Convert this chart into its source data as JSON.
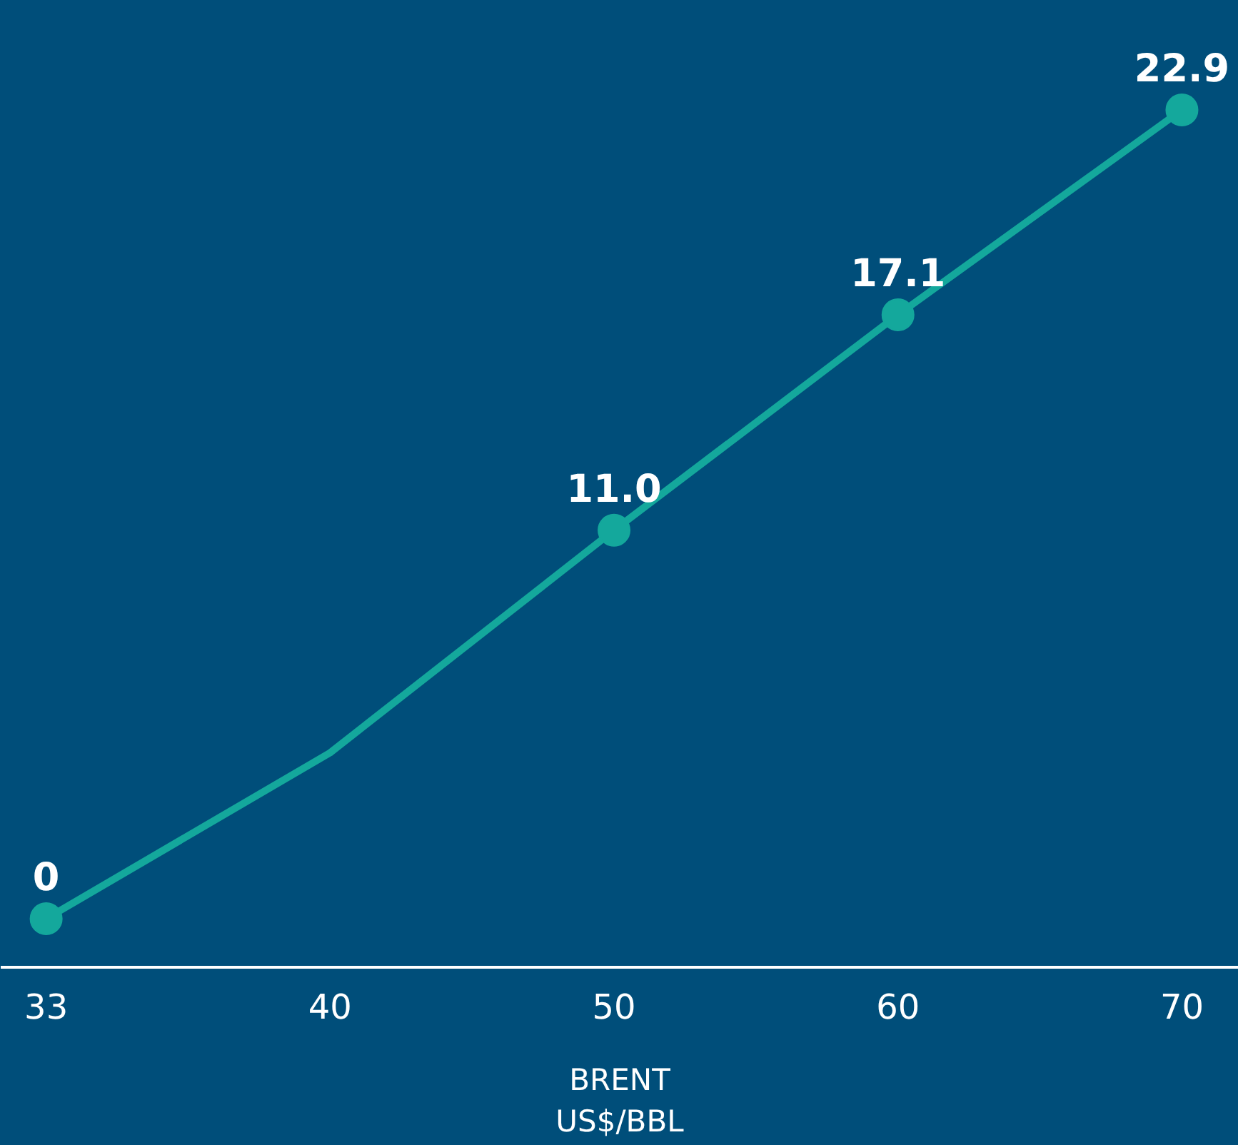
{
  "chart_data": {
    "type": "line",
    "categories": [
      "33",
      "40",
      "50",
      "60",
      "70"
    ],
    "xlabel": "BRENT\nUS$/BBL",
    "series": [
      {
        "color": "#14a89c",
        "values": [
          0,
          4.7,
          11.0,
          17.1,
          22.9
        ],
        "value_labels": [
          "0",
          null,
          "11.0",
          "17.1",
          "22.9"
        ]
      }
    ],
    "marker": "circle",
    "grid": false,
    "tick_labels": "x"
  }
}
